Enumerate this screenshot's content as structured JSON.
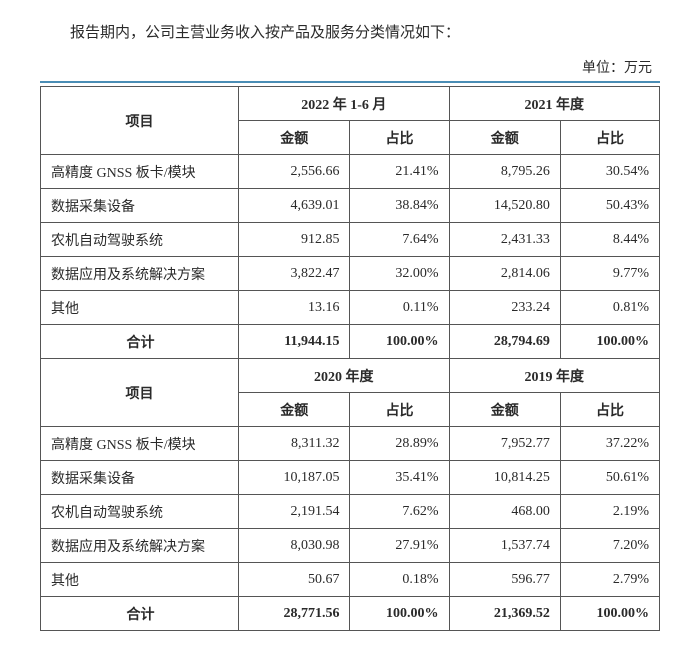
{
  "intro_text": "报告期内，公司主营业务收入按产品及服务分类情况如下：",
  "unit_label": "单位：万元",
  "labels": {
    "item": "项目",
    "amount": "金额",
    "ratio": "占比",
    "total": "合计"
  },
  "style": {
    "rule_color": "#4a8db5",
    "border_color": "#555555",
    "text_color": "#2a2a2a",
    "font_family": "SimSun",
    "header_fontsize": 14,
    "cell_fontsize": 14,
    "col_widths_pct": [
      32,
      18,
      16,
      18,
      16
    ],
    "alignment": {
      "item": "left",
      "amount": "right",
      "ratio": "right",
      "header": "center"
    }
  },
  "row_items": [
    "高精度 GNSS 板卡/模块",
    "数据采集设备",
    "农机自动驾驶系统",
    "数据应用及系统解决方案",
    "其他"
  ],
  "blocks": [
    {
      "periods": [
        {
          "label": "2022 年 1-6 月",
          "amount": [
            "2,556.66",
            "4,639.01",
            "912.85",
            "3,822.47",
            "13.16"
          ],
          "ratio": [
            "21.41%",
            "38.84%",
            "7.64%",
            "32.00%",
            "0.11%"
          ],
          "total_amount": "11,944.15",
          "total_ratio": "100.00%"
        },
        {
          "label": "2021 年度",
          "amount": [
            "8,795.26",
            "14,520.80",
            "2,431.33",
            "2,814.06",
            "233.24"
          ],
          "ratio": [
            "30.54%",
            "50.43%",
            "8.44%",
            "9.77%",
            "0.81%"
          ],
          "total_amount": "28,794.69",
          "total_ratio": "100.00%"
        }
      ]
    },
    {
      "periods": [
        {
          "label": "2020 年度",
          "amount": [
            "8,311.32",
            "10,187.05",
            "2,191.54",
            "8,030.98",
            "50.67"
          ],
          "ratio": [
            "28.89%",
            "35.41%",
            "7.62%",
            "27.91%",
            "0.18%"
          ],
          "total_amount": "28,771.56",
          "total_ratio": "100.00%"
        },
        {
          "label": "2019 年度",
          "amount": [
            "7,952.77",
            "10,814.25",
            "468.00",
            "1,537.74",
            "596.77"
          ],
          "ratio": [
            "37.22%",
            "50.61%",
            "2.19%",
            "7.20%",
            "2.79%"
          ],
          "total_amount": "21,369.52",
          "total_ratio": "100.00%"
        }
      ]
    }
  ]
}
